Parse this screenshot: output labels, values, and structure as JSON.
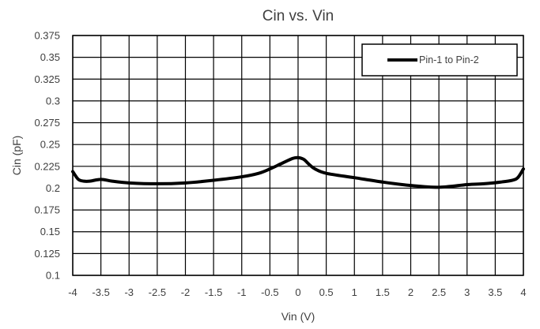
{
  "chart_data": {
    "type": "line",
    "title": "Cin vs. Vin",
    "xlabel": "Vin (V)",
    "ylabel": "Cin (pF)",
    "xlim": [
      -4,
      4
    ],
    "ylim": [
      0.1,
      0.375
    ],
    "x_ticks": [
      "-4",
      "-3.5",
      "-3",
      "-2.5",
      "-2",
      "-1.5",
      "-1",
      "-0.5",
      "0",
      "0.5",
      "1",
      "1.5",
      "2",
      "2.5",
      "3",
      "3.5",
      "4"
    ],
    "y_ticks": [
      "0.1",
      "0.125",
      "0.15",
      "0.175",
      "0.2",
      "0.225",
      "0.25",
      "0.275",
      "0.3",
      "0.325",
      "0.35",
      "0.375"
    ],
    "grid": true,
    "legend_position": "top-right",
    "series": [
      {
        "name": "Pin-1 to Pin-2",
        "color": "#000000",
        "x": [
          -4,
          -3.9,
          -3.8,
          -3.7,
          -3.5,
          -3.3,
          -3,
          -2.5,
          -2,
          -1.5,
          -1,
          -0.7,
          -0.5,
          -0.3,
          -0.1,
          0,
          0.1,
          0.2,
          0.3,
          0.5,
          1,
          1.5,
          2,
          2.5,
          3,
          3.3,
          3.6,
          3.8,
          3.9,
          4
        ],
        "y": [
          0.219,
          0.21,
          0.208,
          0.208,
          0.21,
          0.208,
          0.206,
          0.205,
          0.206,
          0.209,
          0.213,
          0.217,
          0.222,
          0.228,
          0.234,
          0.235,
          0.233,
          0.227,
          0.222,
          0.217,
          0.212,
          0.207,
          0.203,
          0.201,
          0.204,
          0.205,
          0.207,
          0.209,
          0.212,
          0.222
        ]
      }
    ]
  }
}
